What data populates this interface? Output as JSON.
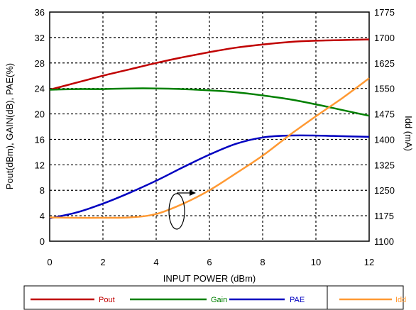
{
  "chart_data": {
    "type": "line",
    "xlabel": "INPUT POWER (dBm)",
    "ylabel": "Pout(dBm), GAIN(dB), PAE(%)",
    "y2label": "Idd (mA)",
    "xlim": [
      0,
      12
    ],
    "ylim": [
      0,
      36
    ],
    "y2lim": [
      1100,
      1775
    ],
    "x_ticks": [
      "0",
      "2",
      "4",
      "6",
      "8",
      "10",
      "12"
    ],
    "y_ticks": [
      "0",
      "4",
      "8",
      "12",
      "16",
      "20",
      "24",
      "28",
      "32",
      "36"
    ],
    "y2_ticks": [
      "1100",
      "1175",
      "1250",
      "1325",
      "1400",
      "1475",
      "1550",
      "1625",
      "1700",
      "1775"
    ],
    "grid": true,
    "legend_position": "bottom",
    "series": [
      {
        "name": "Pout",
        "axis": "left",
        "color": "#c00000",
        "x": [
          0,
          1,
          2,
          3,
          4,
          5,
          6,
          7,
          8,
          9,
          10,
          11,
          12
        ],
        "y": [
          23.8,
          24.9,
          26.0,
          27.0,
          28.0,
          28.9,
          29.7,
          30.4,
          30.9,
          31.3,
          31.5,
          31.6,
          31.7
        ]
      },
      {
        "name": "Gain",
        "axis": "left",
        "color": "#008000",
        "x": [
          0,
          1,
          2,
          3,
          4,
          5,
          6,
          7,
          8,
          9,
          10,
          11,
          12
        ],
        "y": [
          23.8,
          23.9,
          23.9,
          24.0,
          24.0,
          23.9,
          23.7,
          23.4,
          22.9,
          22.3,
          21.5,
          20.6,
          19.7
        ]
      },
      {
        "name": "PAE",
        "axis": "left",
        "color": "#0000c0",
        "x": [
          0,
          1,
          2,
          3,
          4,
          5,
          6,
          7,
          8,
          9,
          10,
          11,
          12
        ],
        "y": [
          3.6,
          4.5,
          5.9,
          7.6,
          9.5,
          11.6,
          13.6,
          15.3,
          16.3,
          16.6,
          16.6,
          16.5,
          16.4
        ]
      },
      {
        "name": "Idd",
        "axis": "right",
        "color": "#ff9933",
        "x": [
          0,
          1,
          2,
          3,
          4,
          5,
          6,
          7,
          8,
          9,
          10,
          11,
          12
        ],
        "y": [
          1170,
          1169,
          1169,
          1170,
          1180,
          1210,
          1250,
          1300,
          1352,
          1412,
          1468,
          1522,
          1580
        ]
      }
    ]
  }
}
